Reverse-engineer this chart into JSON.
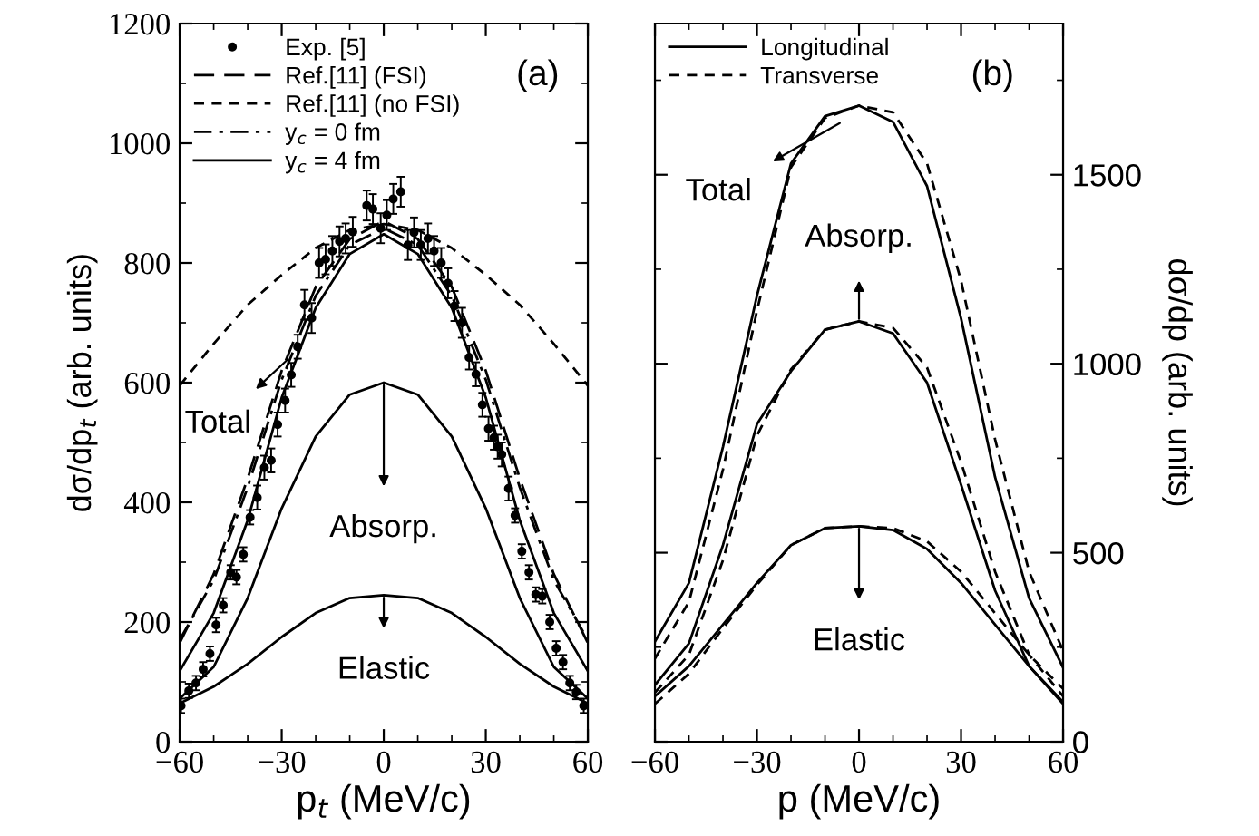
{
  "chart_data": [
    {
      "type": "line",
      "xlabel": "p$_{t}$ (MeV/c)",
      "ylabel": "dσ/dp$_{t}$ (arb. units)",
      "xlim": [
        -60,
        60
      ],
      "ylim": [
        0,
        1200
      ],
      "xticks": [
        -60,
        -30,
        0,
        30,
        60
      ],
      "yticks": [
        0,
        200,
        400,
        600,
        800,
        1000,
        1200
      ],
      "grid": false,
      "legend": "top left",
      "series": [
        {
          "type": "scatter",
          "name": "Exp. [5]",
          "color": "#000000",
          "marker": "circle",
          "x": [
            -59.6,
            -57.3,
            -55.2,
            -53.1,
            -51.1,
            -49.3,
            -47.2,
            -45.0,
            -43.3,
            -41.3,
            -39.3,
            -37.2,
            -35.1,
            -33.1,
            -31.2,
            -29.0,
            -27.2,
            -25.3,
            -23.3,
            -21.2,
            -19.0,
            -17.1,
            -15.1,
            -13.0,
            -11.2,
            -9.1,
            -5.0,
            -3.2,
            -0.9,
            0.9,
            2.8,
            5.0,
            7.1,
            8.9,
            10.9,
            13.0,
            14.8,
            16.9,
            18.9,
            20.8,
            23.0,
            25.1,
            27.1,
            29.0,
            30.8,
            32.4,
            33.5,
            34.7,
            36.7,
            38.6,
            40.6,
            42.7,
            44.7,
            46.6,
            48.8,
            50.7,
            52.7,
            54.7,
            56.6,
            58.8
          ],
          "values": [
            60,
            85,
            98,
            121,
            147,
            195,
            228,
            283,
            275,
            313,
            375,
            408,
            458,
            470,
            530,
            570,
            613,
            660,
            730,
            708,
            800,
            806,
            820,
            836,
            841,
            852,
            896,
            890,
            858,
            880,
            907,
            919,
            830,
            851,
            830,
            841,
            820,
            800,
            766,
            728,
            700,
            642,
            614,
            563,
            523,
            508,
            493,
            480,
            423,
            378,
            318,
            283,
            246,
            243,
            200,
            156,
            133,
            98,
            83,
            60
          ],
          "errors": [
            12,
            12,
            12,
            12,
            12,
            12,
            12,
            12,
            12,
            12,
            12,
            20,
            20,
            20,
            20,
            20,
            20,
            20,
            25,
            25,
            25,
            25,
            25,
            25,
            25,
            25,
            25,
            25,
            25,
            25,
            25,
            25,
            25,
            25,
            25,
            25,
            25,
            25,
            25,
            25,
            25,
            20,
            20,
            20,
            20,
            20,
            20,
            20,
            20,
            12,
            12,
            12,
            12,
            12,
            12,
            12,
            12,
            12,
            12,
            12
          ]
        },
        {
          "name": "Ref.[11] (FSI)",
          "color": "#000000",
          "line_style": "longdash",
          "x": [
            -60,
            -50,
            -40,
            -30,
            -20,
            -10,
            0,
            10,
            20,
            30,
            40,
            50,
            60
          ],
          "values": [
            165,
            280,
            440,
            620,
            760,
            840,
            870,
            840,
            760,
            620,
            440,
            280,
            165
          ]
        },
        {
          "name": "Ref.[11] (no FSI)",
          "color": "#000000",
          "line_style": "dashed",
          "x": [
            -60,
            -50,
            -40,
            -30,
            -20,
            -10,
            0,
            10,
            20,
            30,
            40,
            50,
            60
          ],
          "values": [
            595,
            665,
            730,
            780,
            825,
            855,
            865,
            855,
            825,
            780,
            730,
            665,
            595
          ]
        },
        {
          "name": "y$_{c}$ = 0 fm",
          "color": "#000000",
          "line_style": "dashdot",
          "x": [
            -60,
            -50,
            -40,
            -30,
            -20,
            -10,
            0,
            10,
            20,
            30,
            40,
            50,
            60
          ],
          "values": [
            170,
            270,
            425,
            605,
            745,
            830,
            858,
            830,
            745,
            605,
            425,
            270,
            170
          ]
        },
        {
          "name": "y$_{c}$ = 4 fm",
          "color": "#000000",
          "line_style": "solid",
          "x": [
            -60,
            -50,
            -40,
            -30,
            -20,
            -10,
            0,
            10,
            20,
            30,
            40,
            50,
            60
          ],
          "values": [
            118,
            215,
            370,
            575,
            725,
            815,
            848,
            815,
            725,
            575,
            370,
            215,
            118
          ]
        },
        {
          "color": "#000000",
          "line_style": "solid",
          "x": [
            -60,
            -50,
            -40,
            -30,
            -20,
            -10,
            0,
            10,
            20,
            30,
            40,
            50,
            60
          ],
          "values": [
            72,
            125,
            240,
            390,
            510,
            580,
            600,
            580,
            510,
            390,
            240,
            125,
            72
          ]
        },
        {
          "color": "#000000",
          "line_style": "solid",
          "x": [
            -60,
            -50,
            -40,
            -30,
            -20,
            -10,
            0,
            10,
            20,
            30,
            40,
            50,
            60
          ],
          "values": [
            64,
            92,
            130,
            175,
            215,
            240,
            245,
            240,
            215,
            175,
            130,
            92,
            64
          ]
        }
      ],
      "annotations": [
        "(a)",
        {
          "text": "Total",
          "x": -28,
          "y": 640
        },
        {
          "text": "Absorp.",
          "x": 0,
          "y": 600
        },
        {
          "text": "Elastic",
          "x": 0,
          "y": 245
        }
      ]
    },
    {
      "type": "line",
      "xlabel": "p (MeV/c)",
      "ylabel": "dσ/dp (arb. units)",
      "xlim": [
        -60,
        60
      ],
      "ylim": [
        0,
        1900
      ],
      "xticks": [
        -60,
        -30,
        0,
        30,
        60
      ],
      "yticks": [
        0,
        500,
        1000,
        1500
      ],
      "grid": false,
      "legend": "top left",
      "series": [
        {
          "name": "Longitudinal",
          "color": "#000000",
          "line_style": "solid",
          "x": [
            -60,
            -50,
            -40,
            -30,
            -20,
            -10,
            0,
            10,
            20,
            30,
            40,
            50,
            60
          ],
          "values": [
            265,
            420,
            780,
            1180,
            1530,
            1655,
            1683,
            1640,
            1470,
            1120,
            700,
            380,
            196
          ]
        },
        {
          "name": "Transverse",
          "color": "#000000",
          "line_style": "dashed",
          "x": [
            -60,
            -50,
            -40,
            -30,
            -20,
            -10,
            0,
            10,
            20,
            30,
            40,
            50,
            60
          ],
          "values": [
            220,
            370,
            720,
            1140,
            1520,
            1650,
            1683,
            1665,
            1530,
            1220,
            800,
            450,
            240
          ]
        },
        {
          "color": "#000000",
          "line_style": "solid",
          "x": [
            -60,
            -50,
            -40,
            -30,
            -20,
            -10,
            0,
            10,
            20,
            30,
            40,
            50,
            60
          ],
          "values": [
            150,
            260,
            520,
            840,
            980,
            1090,
            1112,
            1080,
            950,
            680,
            400,
            200,
            105
          ]
        },
        {
          "color": "#000000",
          "line_style": "dashed",
          "x": [
            -60,
            -50,
            -40,
            -30,
            -20,
            -10,
            0,
            10,
            20,
            30,
            40,
            50,
            60
          ],
          "values": [
            130,
            230,
            480,
            810,
            985,
            1090,
            1112,
            1095,
            990,
            740,
            450,
            230,
            120
          ]
        },
        {
          "color": "#000000",
          "line_style": "solid",
          "x": [
            -60,
            -50,
            -40,
            -30,
            -20,
            -10,
            0,
            10,
            20,
            30,
            40,
            50,
            60
          ],
          "values": [
            120,
            200,
            310,
            420,
            520,
            565,
            570,
            560,
            510,
            420,
            310,
            200,
            100
          ]
        },
        {
          "color": "#000000",
          "line_style": "dashed",
          "x": [
            -60,
            -50,
            -40,
            -30,
            -20,
            -10,
            0,
            10,
            20,
            30,
            40,
            50,
            60
          ],
          "values": [
            100,
            180,
            300,
            415,
            520,
            565,
            570,
            565,
            530,
            450,
            340,
            230,
            140
          ]
        }
      ],
      "annotations": [
        "(b)",
        {
          "text": "Total",
          "x": -5,
          "y": 1640
        },
        {
          "text": "Absorp.",
          "x": 0,
          "y": 1112
        },
        {
          "text": "Elastic",
          "x": 0,
          "y": 570
        }
      ]
    }
  ]
}
